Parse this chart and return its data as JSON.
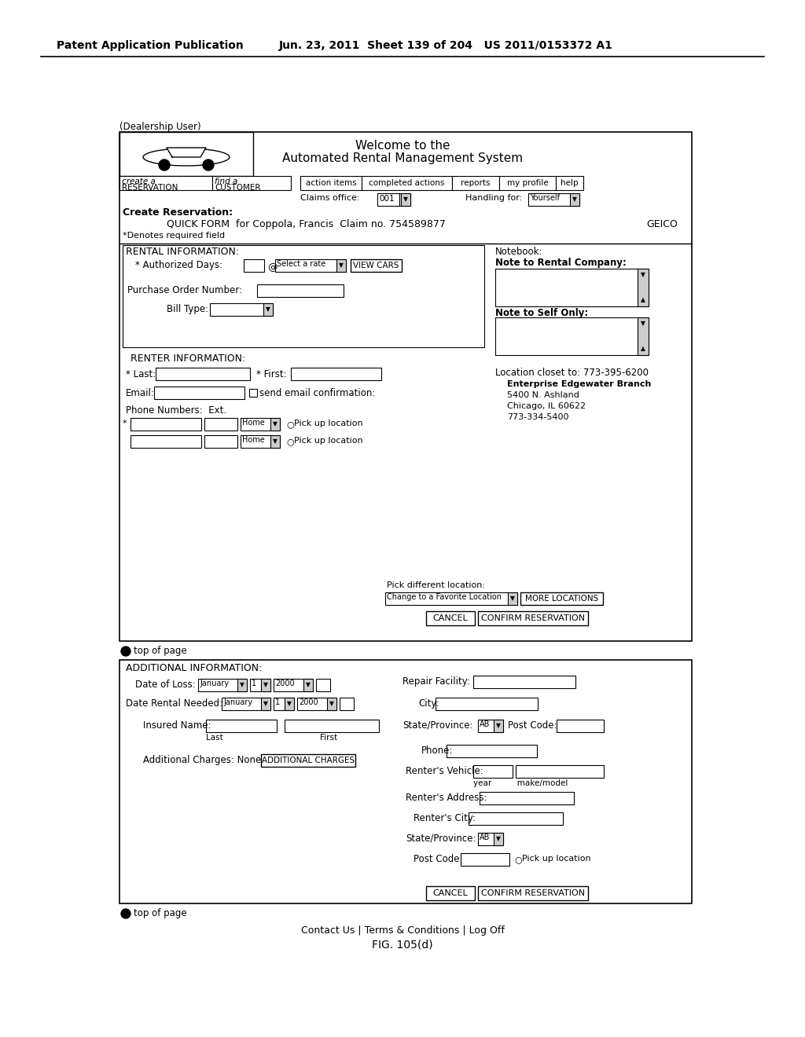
{
  "header_left": "Patent Application Publication",
  "header_right": "Jun. 23, 2011  Sheet 139 of 204   US 2011/0153372 A1",
  "dealership_user": "(Dealership User)",
  "welcome_title": "Welcome to the",
  "welcome_subtitle": "Automated Rental Management System",
  "nav_items": [
    "action items",
    "completed actions",
    "reports",
    "my profile",
    "help"
  ],
  "create_reservation_label": "Create Reservation:",
  "quick_form_line": "QUICK FORM  for Coppola, Francis  Claim no. 754589877",
  "geico": "GEICO",
  "required_field": "*Denotes required field",
  "rental_info_header": "RENTAL INFORMATION:",
  "authorized_days": "* Authorized Days:",
  "at_symbol": "@",
  "select_rate": "Select a rate",
  "view_cars": "VIEW CARS",
  "purchase_order": "Purchase Order Number:",
  "bill_type": "Bill Type:",
  "renter_info_header": "RENTER INFORMATION:",
  "last_label": "* Last:",
  "first_label": "* First:",
  "email_label": "Email:",
  "send_email": "send email confirmation:",
  "phone_numbers": "Phone Numbers:  Ext.",
  "pick_up": "O  Pick up location",
  "pick_different": "Pick different location:",
  "change_location": "Change to a Favorite Location",
  "more_locations": "MORE LOCATIONS",
  "cancel_btn": "CANCEL",
  "confirm_btn": "CONFIRM RESERVATION",
  "top_of_page": "top of page",
  "notebook": "Notebook:",
  "note_rental": "Note to Rental Company:",
  "note_self": "Note to Self Only:",
  "location_closet": "Location closet to: 773-395-6200",
  "enterprise_branch": "Enterprise Edgewater Branch",
  "address_line1": "5400 N. Ashland",
  "address_line2": "Chicago, IL 60622",
  "phone_branch": "773-334-5400",
  "additional_info_header": "ADDITIONAL INFORMATION:",
  "date_loss": "Date of Loss:",
  "date_rental": "Date Rental Needed:",
  "insured_name": "Insured Name:",
  "additional_charges": "Additional Charges: None",
  "additional_charges_btn": "ADDITIONAL CHARGES",
  "repair_facility": "Repair Facility:",
  "city_label": "City:",
  "state_province": "State/Province:",
  "post_code": "Post Code:",
  "phone_label": "Phone:",
  "renters_vehicle": "Renter's Vehicle:",
  "year_make": "year          make/model",
  "renters_address": "Renter's Address:",
  "renters_city": "Renter's City:",
  "renters_state": "State/Province:",
  "renters_post": "Post Code:",
  "contact_line": "Contact Us | Terms & Conditions | Log Off",
  "fig_label": "FIG. 105(d)"
}
